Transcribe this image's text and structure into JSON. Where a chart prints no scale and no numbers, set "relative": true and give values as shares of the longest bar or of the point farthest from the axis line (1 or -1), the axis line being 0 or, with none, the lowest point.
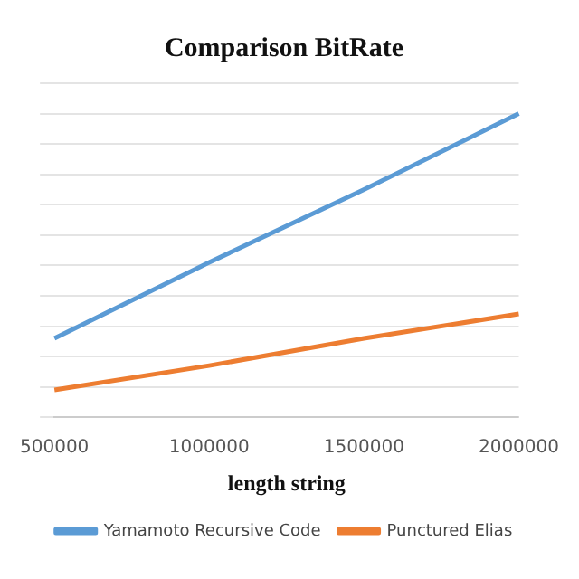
{
  "chart_data": {
    "type": "line",
    "title": "Comparison BitRate",
    "xlabel": "length string",
    "categories": [
      "500000",
      "1000000",
      "1500000",
      "2000000"
    ],
    "relative": true,
    "grid": "y",
    "legend": "bottom",
    "marker": "none",
    "series": [
      {
        "name": "Yamamoto Recursive Code",
        "color": "#5b9bd5",
        "values": [
          0.26,
          0.51,
          0.75,
          1.0
        ]
      },
      {
        "name": "Punctured Elias",
        "color": "#ed7d31",
        "values": [
          0.09,
          0.17,
          0.26,
          0.34
        ]
      }
    ]
  }
}
